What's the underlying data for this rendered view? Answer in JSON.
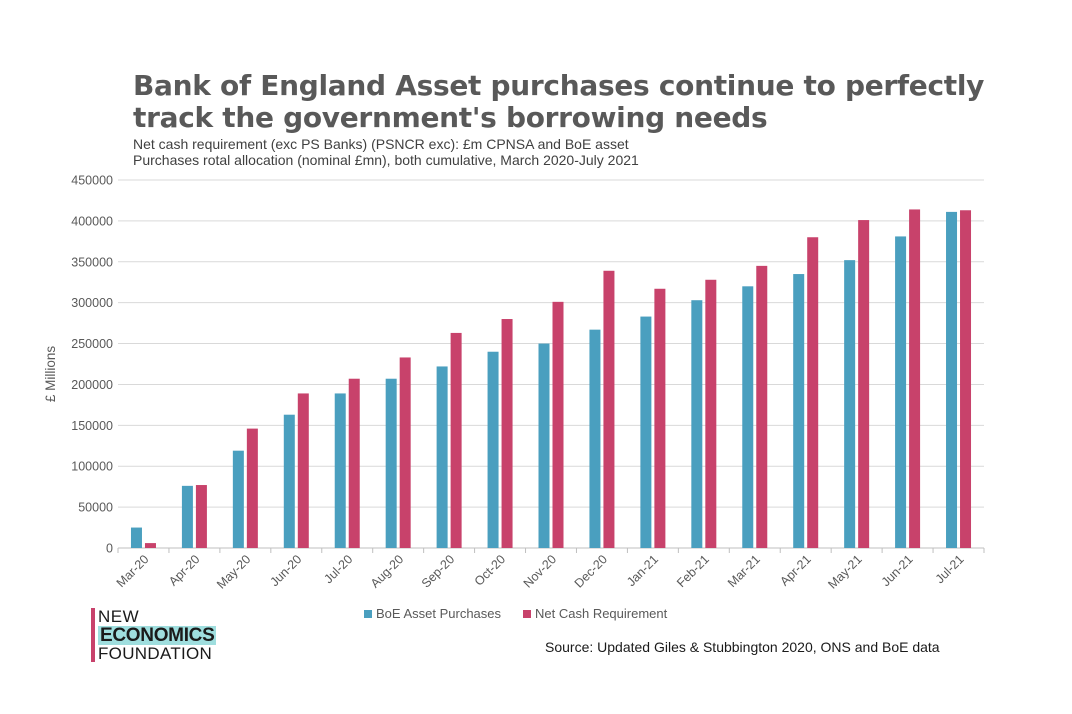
{
  "heading": {
    "line1": "Bank of England Asset purchases continue to perfectly",
    "line2": "track the government's borrowing needs",
    "subtitle_line1": "Net cash requirement (exc PS Banks) (PSNCR exc): £m CPNSA and BoE asset",
    "subtitle_line2": "Purchases rotal allocation (nominal £mn), both cumulative, March 2020-July 2021"
  },
  "chart_data": {
    "type": "bar",
    "ylabel": "£ Millions",
    "xlabel": "",
    "ylim": [
      0,
      450000
    ],
    "yticks": [
      0,
      50000,
      100000,
      150000,
      200000,
      250000,
      300000,
      350000,
      400000,
      450000
    ],
    "grid": true,
    "legend_placement": "bottom",
    "categories": [
      "Mar-20",
      "Apr-20",
      "May-20",
      "Jun-20",
      "Jul-20",
      "Aug-20",
      "Sep-20",
      "Oct-20",
      "Nov-20",
      "Dec-20",
      "Jan-21",
      "Feb-21",
      "Mar-21",
      "Apr-21",
      "May-21",
      "Jun-21",
      "Jul-21"
    ],
    "series": [
      {
        "name": "BoE Asset Purchases",
        "color": "#4a9fbf",
        "values": [
          25000,
          76000,
          119000,
          163000,
          189000,
          207000,
          222000,
          240000,
          250000,
          267000,
          283000,
          303000,
          320000,
          335000,
          352000,
          381000,
          411000
        ]
      },
      {
        "name": "Net Cash Requirement",
        "color": "#c8426b",
        "values": [
          6000,
          77000,
          146000,
          189000,
          207000,
          233000,
          263000,
          280000,
          301000,
          339000,
          317000,
          328000,
          345000,
          380000,
          401000,
          414000,
          413000
        ]
      }
    ]
  },
  "logo": {
    "line1": "NEW",
    "line2": "ECONOMICS",
    "line3": "FOUNDATION",
    "bar_color": "#c8426b",
    "highlight_color": "#9fdede"
  },
  "source": "Source: Updated Giles & Stubbington 2020, ONS and BoE data"
}
